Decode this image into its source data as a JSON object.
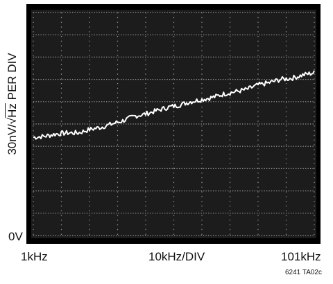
{
  "chart_data": {
    "type": "line",
    "title": "",
    "ylabel_prefix": "30nV/√",
    "ylabel_root": "Hz",
    "ylabel_suffix": " PER DIV",
    "y_zero_label": "0V",
    "x_ticks": {
      "left": "1kHz",
      "center": "10kHz/DIV",
      "right": "101kHz"
    },
    "figure_id": "6241 TA02c",
    "x_range_khz": [
      1,
      101
    ],
    "y_range_div": [
      0,
      10
    ],
    "grid": true,
    "colors": {
      "screen": "#1c1c1c",
      "grid": "#9a9a9a",
      "trace": "#ffffff",
      "frame": "#000000"
    },
    "series": [
      {
        "x_khz": [
          1,
          5,
          9,
          13,
          17,
          21,
          25,
          29,
          33,
          37,
          41,
          45,
          49,
          53,
          57,
          61,
          65,
          69,
          73,
          77,
          81,
          85,
          89,
          93,
          97,
          101
        ],
        "y_div": [
          4.4,
          4.45,
          4.55,
          4.6,
          4.6,
          4.75,
          4.85,
          5.0,
          5.15,
          5.35,
          5.45,
          5.6,
          5.75,
          5.85,
          6.0,
          6.1,
          6.2,
          6.35,
          6.45,
          6.55,
          6.75,
          6.85,
          7.0,
          7.05,
          7.2,
          7.3
        ]
      }
    ]
  }
}
